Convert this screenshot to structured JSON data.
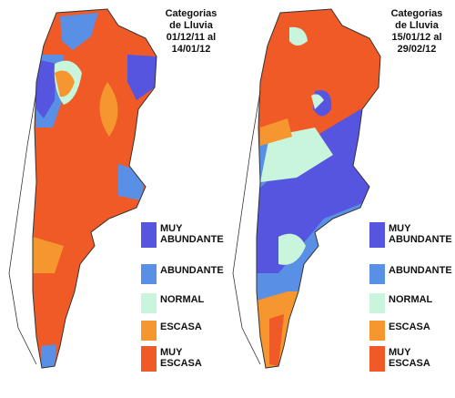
{
  "maps": [
    {
      "title": [
        "Categorias",
        "de Lluvia",
        "01/12/11 al",
        "14/01/12"
      ],
      "legend": [
        {
          "label": [
            "MUY",
            "ABUNDANTE"
          ],
          "color": "#5555e0"
        },
        {
          "label": [
            "ABUNDANTE"
          ],
          "color": "#5a8fe6"
        },
        {
          "label": [
            "NORMAL"
          ],
          "color": "#c8f5dc"
        },
        {
          "label": [
            "ESCASA"
          ],
          "color": "#f5962f"
        },
        {
          "label": [
            "MUY",
            "ESCASA"
          ],
          "color": "#f05a26"
        }
      ]
    },
    {
      "title": [
        "Categorias",
        "de Lluvia",
        "15/01/12 al",
        "29/02/12"
      ],
      "legend": [
        {
          "label": [
            "MUY",
            "ABUNDANTE"
          ],
          "color": "#5555e0"
        },
        {
          "label": [
            "ABUNDANTE"
          ],
          "color": "#5a8fe6"
        },
        {
          "label": [
            "NORMAL"
          ],
          "color": "#c8f5dc"
        },
        {
          "label": [
            "ESCASA"
          ],
          "color": "#f5962f"
        },
        {
          "label": [
            "MUY",
            "ESCASA"
          ],
          "color": "#f05a26"
        }
      ]
    }
  ]
}
